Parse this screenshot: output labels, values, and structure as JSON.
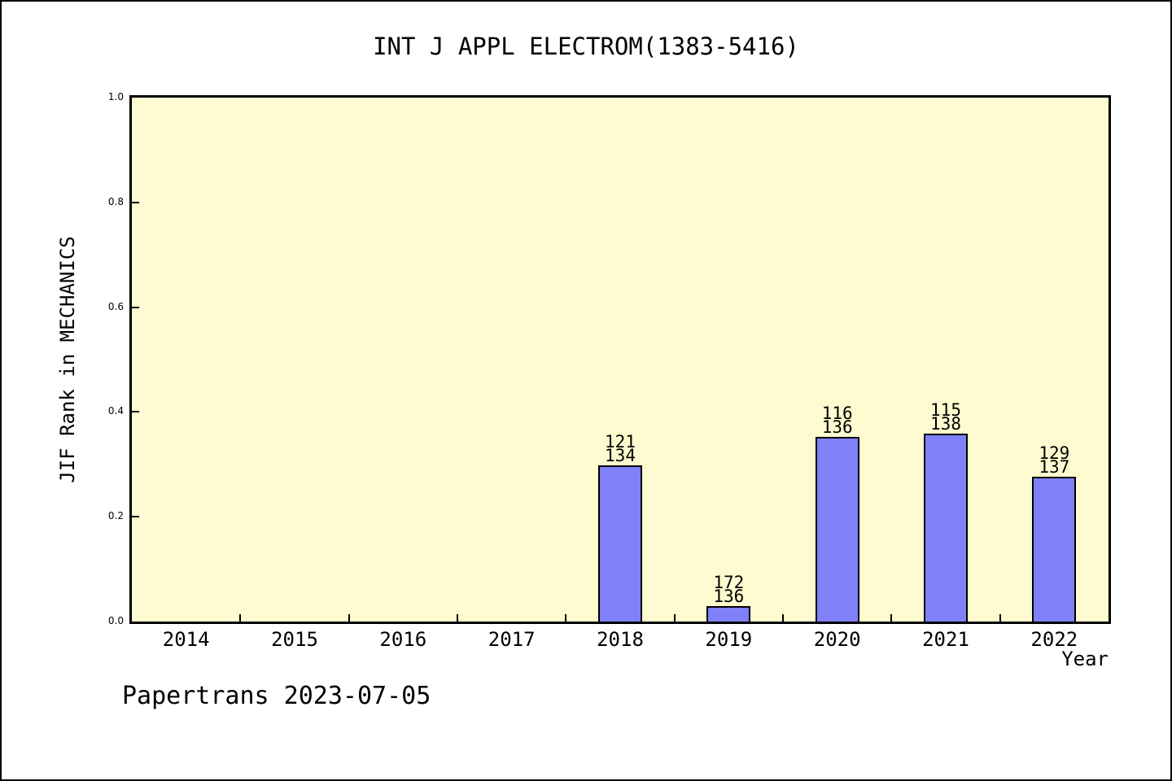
{
  "watermark": "Papertrans 2023-07-05",
  "chart_data": {
    "type": "bar",
    "title": "INT J APPL ELECTROM(1383-5416)",
    "xlabel": "Year",
    "ylabel": "JIF Rank in MECHANICS",
    "ylim": [
      0,
      1
    ],
    "grid": false,
    "legend": null,
    "plot_bg_color": "#fffbd0",
    "bar_color": "#8080f8",
    "bar_border_color": "#000000",
    "yticks": [
      0.0,
      0.2,
      0.4,
      0.6,
      0.8,
      1.0
    ],
    "ytick_labels": [
      "0.0",
      "0.2",
      "0.4",
      "0.6",
      "0.8",
      "1.0"
    ],
    "categories": [
      "2014",
      "2015",
      "2016",
      "2017",
      "2018",
      "2019",
      "2020",
      "2021",
      "2022"
    ],
    "bars": [
      {
        "category": "2018",
        "rank": "121",
        "total": "134",
        "value": 0.298
      },
      {
        "category": "2019",
        "rank": "172",
        "total": "136",
        "value": 0.03
      },
      {
        "category": "2020",
        "rank": "116",
        "total": "136",
        "value": 0.352
      },
      {
        "category": "2021",
        "rank": "115",
        "total": "138",
        "value": 0.359
      },
      {
        "category": "2022",
        "rank": "129",
        "total": "137",
        "value": 0.276
      }
    ]
  }
}
